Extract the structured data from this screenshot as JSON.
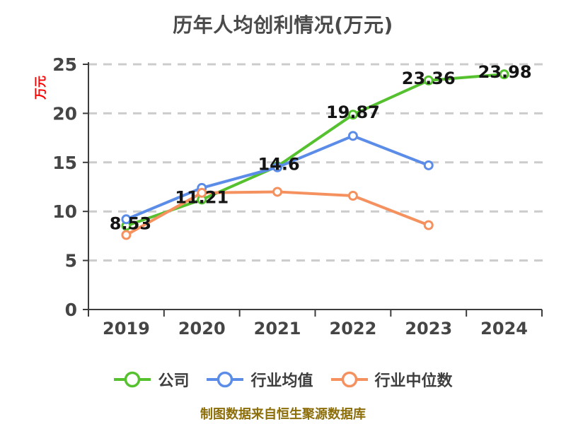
{
  "title": "历年人均创利情况(万元)",
  "footer": "制图数据来自恒生聚源数据库",
  "colors": {
    "company_green": "#55C12E",
    "industry_avg_blue": "#5B8CE8",
    "industry_median_orange": "#F5915F",
    "grid": "#CCCCCC",
    "axis": "#3D3D3D",
    "tick_text": "#454545",
    "data_label": "#141414",
    "title_text": "#4A4A4A",
    "legend_text": "#3E3E3E",
    "y_axis_unit_red": "#FF0000",
    "footer_text": "#8C6E0A"
  },
  "chart_data": {
    "type": "line",
    "title": "历年人均创利情况(万元)",
    "categories": [
      "2019",
      "2020",
      "2021",
      "2022",
      "2023",
      "2024"
    ],
    "series": [
      {
        "name": "公司",
        "color": "#55C12E",
        "values": [
          8.53,
          11.21,
          14.6,
          19.87,
          23.36,
          23.98
        ],
        "labels": [
          "8.53",
          "11.21",
          "14.6",
          "19.87",
          "23.36",
          "23.98"
        ]
      },
      {
        "name": "行业均值",
        "color": "#5B8CE8",
        "values": [
          9.2,
          12.4,
          14.5,
          17.7,
          14.7,
          null
        ],
        "labels": []
      },
      {
        "name": "行业中位数",
        "color": "#F5915F",
        "values": [
          7.6,
          11.9,
          12.0,
          11.6,
          8.6,
          null
        ],
        "labels": []
      }
    ],
    "ylabel": "万元",
    "ylim": [
      0,
      25
    ],
    "yticks": [
      0,
      5,
      10,
      15,
      20,
      25
    ],
    "grid": "horizontal-dashed",
    "legend_position": "bottom",
    "annotation": "制图数据来自恒生聚源数据库"
  }
}
